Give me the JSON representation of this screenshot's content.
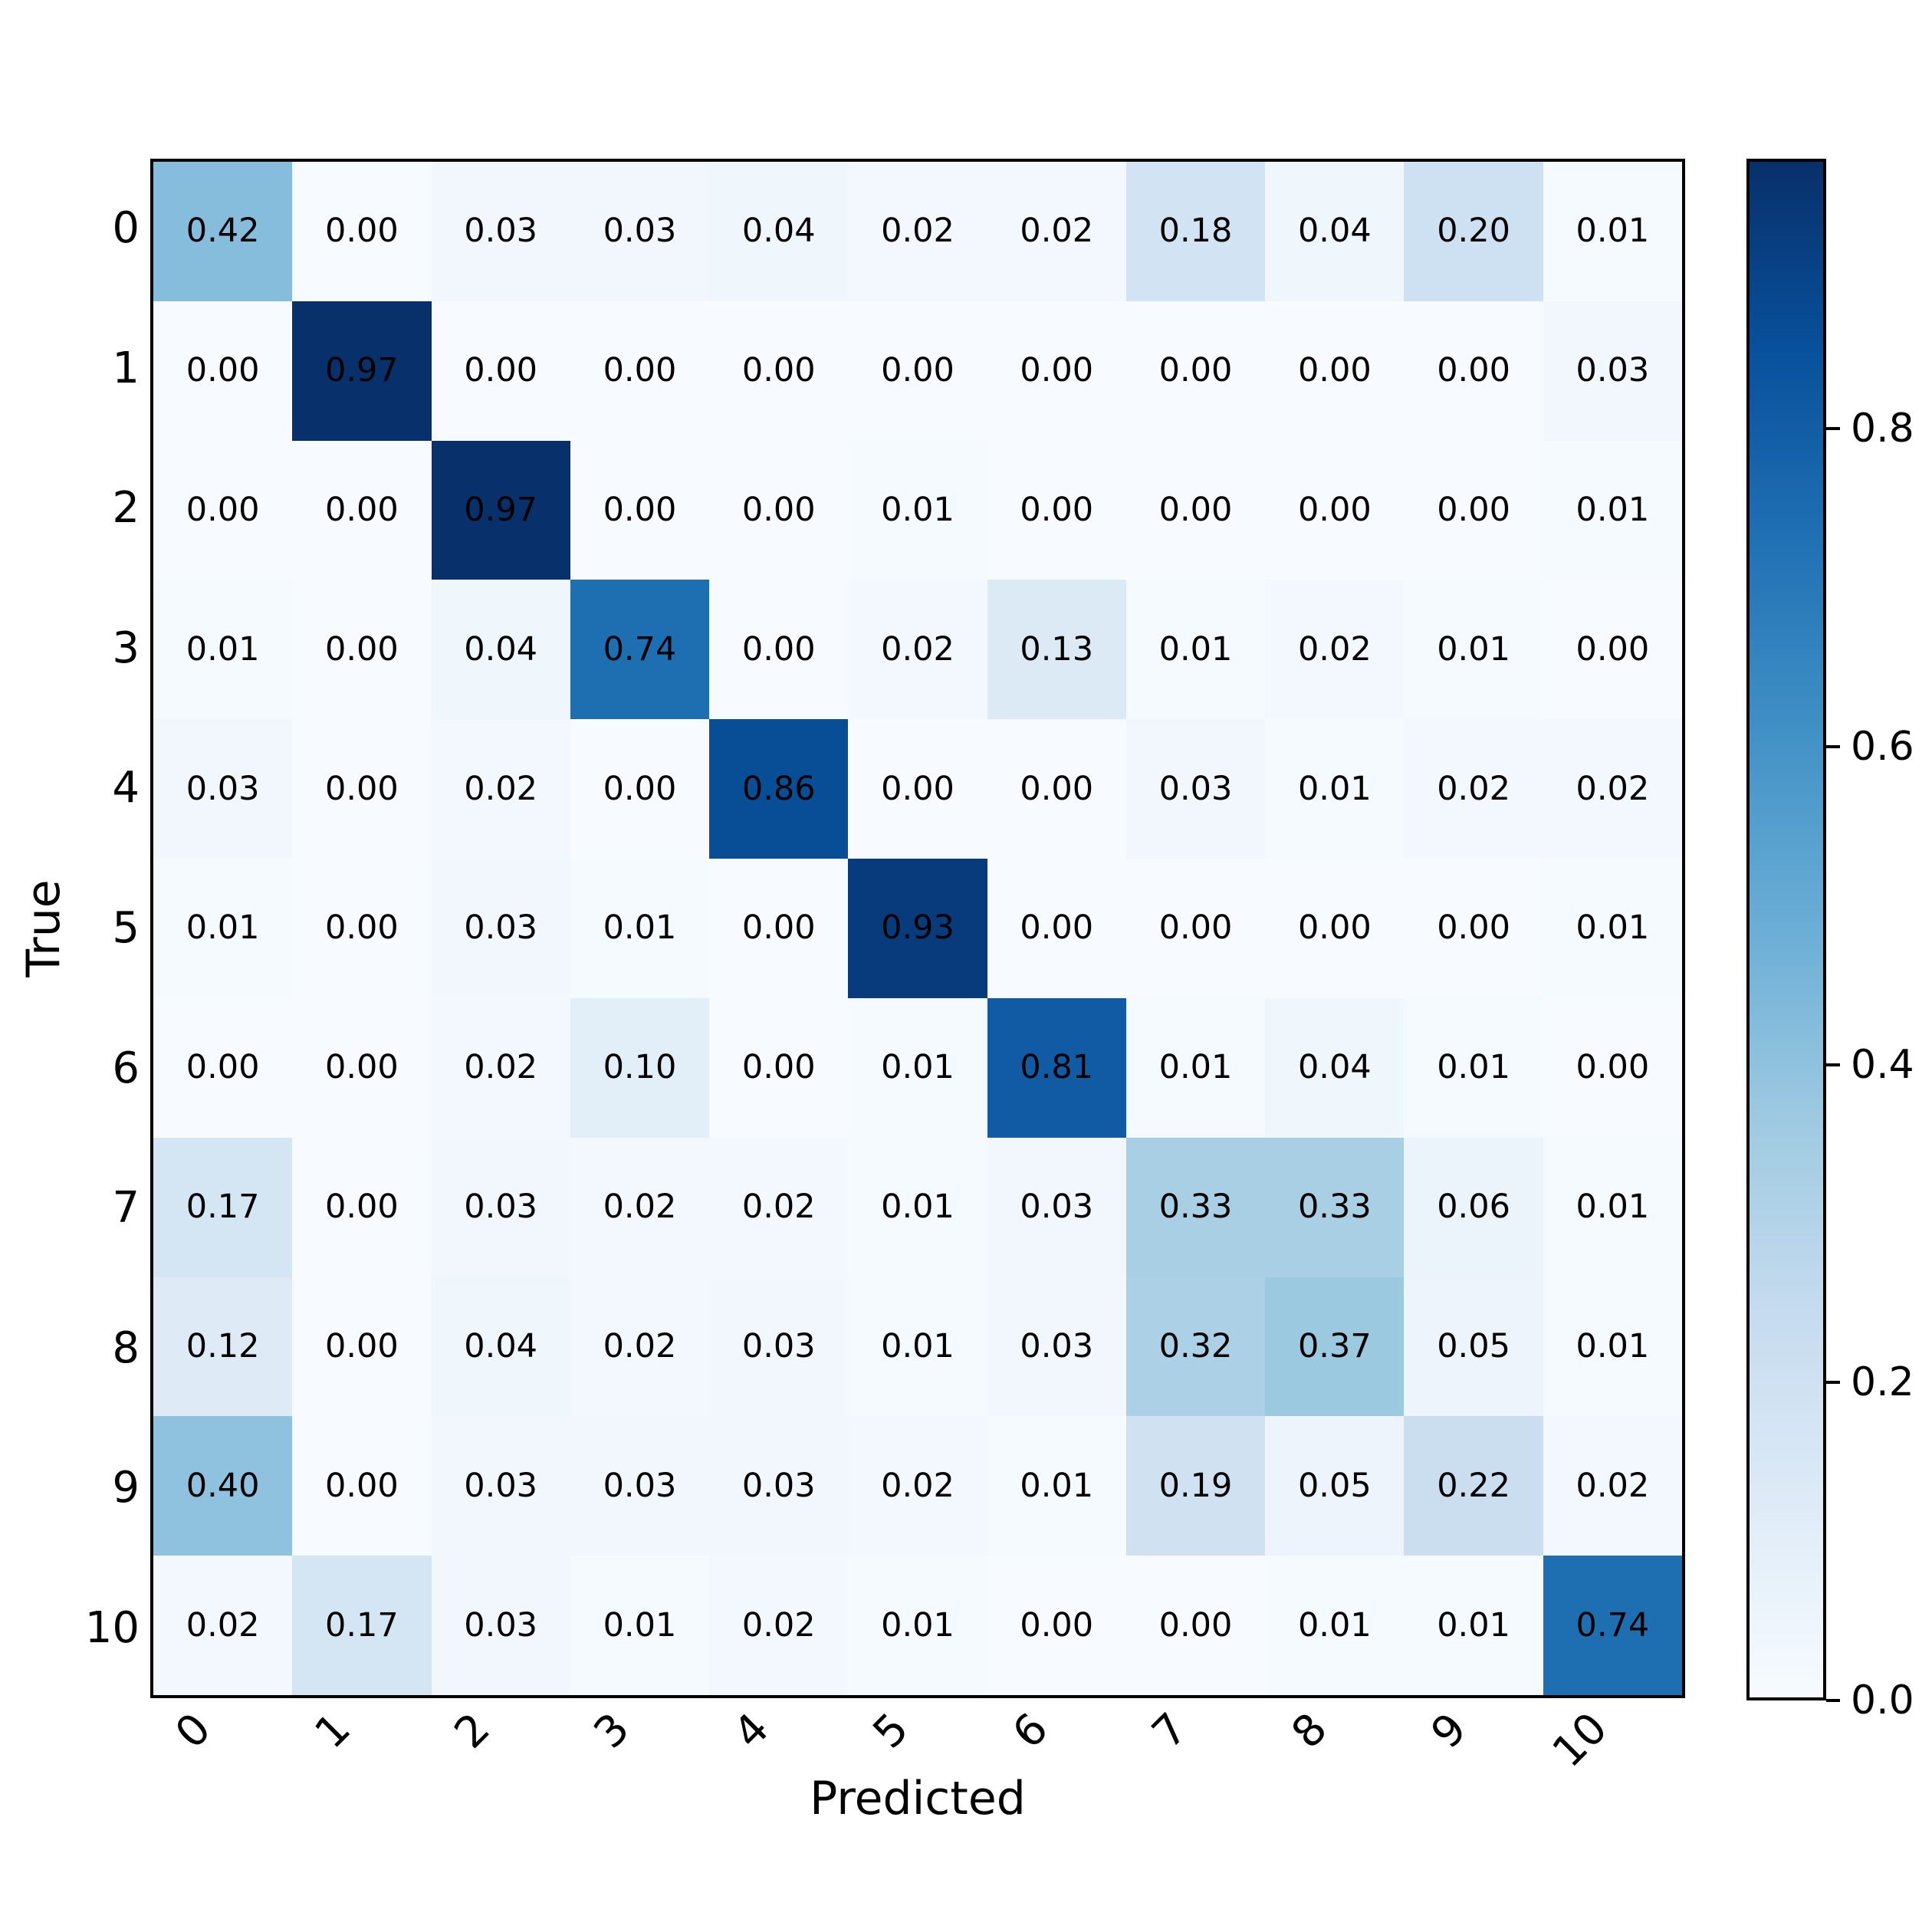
{
  "chart_data": {
    "type": "heatmap",
    "subtype": "confusion-matrix",
    "title": "",
    "xlabel": "Predicted",
    "ylabel": "True",
    "x_tick_labels": [
      "0",
      "1",
      "2",
      "3",
      "4",
      "5",
      "6",
      "7",
      "8",
      "9",
      "10"
    ],
    "y_tick_labels": [
      "0",
      "1",
      "2",
      "3",
      "4",
      "5",
      "6",
      "7",
      "8",
      "9",
      "10"
    ],
    "matrix": [
      [
        0.42,
        0.0,
        0.03,
        0.03,
        0.04,
        0.02,
        0.02,
        0.18,
        0.04,
        0.2,
        0.01
      ],
      [
        0.0,
        0.97,
        0.0,
        0.0,
        0.0,
        0.0,
        0.0,
        0.0,
        0.0,
        0.0,
        0.03
      ],
      [
        0.0,
        0.0,
        0.97,
        0.0,
        0.0,
        0.01,
        0.0,
        0.0,
        0.0,
        0.0,
        0.01
      ],
      [
        0.01,
        0.0,
        0.04,
        0.74,
        0.0,
        0.02,
        0.13,
        0.01,
        0.02,
        0.01,
        0.0
      ],
      [
        0.03,
        0.0,
        0.02,
        0.0,
        0.86,
        0.0,
        0.0,
        0.03,
        0.01,
        0.02,
        0.02
      ],
      [
        0.01,
        0.0,
        0.03,
        0.01,
        0.0,
        0.93,
        0.0,
        0.0,
        0.0,
        0.0,
        0.01
      ],
      [
        0.0,
        0.0,
        0.02,
        0.1,
        0.0,
        0.01,
        0.81,
        0.01,
        0.04,
        0.01,
        0.0
      ],
      [
        0.17,
        0.0,
        0.03,
        0.02,
        0.02,
        0.01,
        0.03,
        0.33,
        0.33,
        0.06,
        0.01
      ],
      [
        0.12,
        0.0,
        0.04,
        0.02,
        0.03,
        0.01,
        0.03,
        0.32,
        0.37,
        0.05,
        0.01
      ],
      [
        0.4,
        0.0,
        0.03,
        0.03,
        0.03,
        0.02,
        0.01,
        0.19,
        0.05,
        0.22,
        0.02
      ],
      [
        0.02,
        0.17,
        0.03,
        0.01,
        0.02,
        0.01,
        0.0,
        0.0,
        0.01,
        0.01,
        0.74
      ]
    ],
    "value_decimals": 2,
    "cell_text_color": "#000000",
    "vmin": 0.0,
    "vmax": 0.97,
    "colormap": {
      "name": "Blues",
      "stops": [
        "#f7fbff",
        "#deebf7",
        "#c6dbef",
        "#9ecae1",
        "#6baed6",
        "#4292c6",
        "#2171b5",
        "#08519c",
        "#08306b"
      ]
    },
    "colorbar_ticks": [
      {
        "value": 0.0,
        "label": "0.0"
      },
      {
        "value": 0.2,
        "label": "0.2"
      },
      {
        "value": 0.4,
        "label": "0.4"
      },
      {
        "value": 0.6,
        "label": "0.6"
      },
      {
        "value": 0.8,
        "label": "0.8"
      }
    ],
    "grid": false,
    "legend_position": "right-colorbar"
  }
}
